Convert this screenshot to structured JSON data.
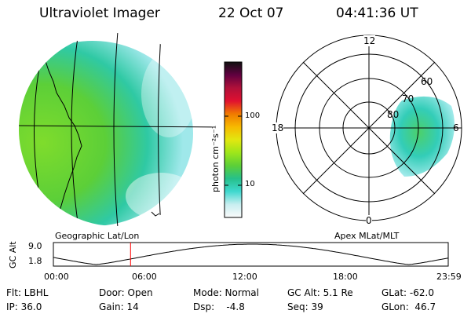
{
  "header": {
    "instrument": "Ultraviolet Imager",
    "date": "22 Oct 07",
    "time": "04:41:36 UT"
  },
  "left_panel": {
    "caption": "Geographic Lat/Lon"
  },
  "right_panel": {
    "caption": "Apex MLat/MLT",
    "mlt_labels": {
      "top": "12",
      "left": "18",
      "right": "6",
      "bottom": "0"
    },
    "mlat_labels": [
      "60",
      "70",
      "80"
    ]
  },
  "colorbar": {
    "unit_label": "photon cm⁻²s⁻¹",
    "ticks": [
      "100",
      "10"
    ],
    "scale": "log",
    "colors": [
      "#fbfbfb",
      "#c8eef0",
      "#3fd8cf",
      "#26c08a",
      "#5ccf38",
      "#9ee61a",
      "#e2e710",
      "#f7b900",
      "#f07a00",
      "#e01030",
      "#b0103a",
      "#600040",
      "#101010"
    ]
  },
  "altitude_plot": {
    "ylabel": "GC Alt",
    "yticks": [
      "9.0",
      "1.8"
    ],
    "xticks": [
      "00:00",
      "06:00",
      "12:00",
      "18:00",
      "23:59"
    ],
    "current_time_hours": 4.69,
    "xlim_hours": [
      0,
      24
    ],
    "ylim_re": [
      1.8,
      9.0
    ],
    "marker_color": "#ff0000"
  },
  "status": {
    "row1": {
      "flt": "Flt: LBHL",
      "door": "Door: Open",
      "mode": "Mode: Normal",
      "gc_alt": "GC Alt: 5.1 Re",
      "glat": "GLat: -62.0"
    },
    "row2": {
      "ip": "IP: 36.0",
      "gain": "Gain: 14",
      "dsp": "Dsp:    -4.8",
      "seq": "Seq: 39",
      "glon": "GLon:  46.7"
    }
  }
}
